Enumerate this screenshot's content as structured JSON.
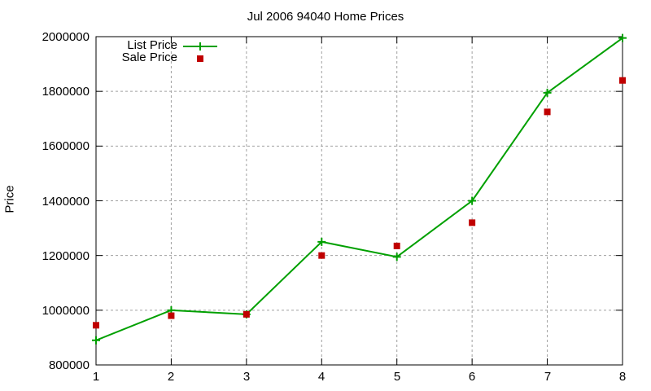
{
  "chart_data": {
    "type": "line",
    "title": "Jul 2006 94040 Home Prices",
    "xlabel": "",
    "ylabel": "Price",
    "x": [
      1,
      2,
      3,
      4,
      5,
      6,
      7,
      8
    ],
    "xlim": [
      1,
      8
    ],
    "ylim": [
      800000,
      2000000
    ],
    "xticks": [
      "1",
      "2",
      "3",
      "4",
      "5",
      "6",
      "7",
      "8"
    ],
    "yticks": [
      "800000",
      "1000000",
      "1200000",
      "1400000",
      "1600000",
      "1800000",
      "2000000"
    ],
    "grid": true,
    "legend_position": "top-left",
    "series": [
      {
        "name": "List Price",
        "style": "linespoints",
        "marker": "plus",
        "color": "#00a000",
        "values": [
          890000,
          1000000,
          985000,
          1250000,
          1195000,
          1400000,
          1795000,
          1995000
        ]
      },
      {
        "name": "Sale Price",
        "style": "points",
        "marker": "filled-square",
        "color": "#c00000",
        "values": [
          945000,
          980000,
          985000,
          1200000,
          1235000,
          1320000,
          1725000,
          1840000
        ]
      }
    ]
  },
  "legend": {
    "list_label": "List Price",
    "sale_label": "Sale Price"
  }
}
